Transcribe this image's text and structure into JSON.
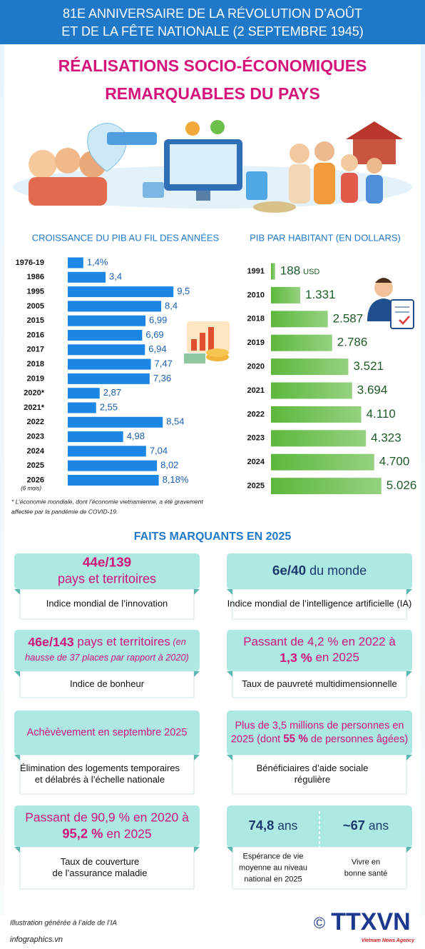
{
  "header": {
    "line1": "81E ANNIVERSAIRE DE LA RÉVOLUTION D’AOÛT",
    "line2": "ET DE LA FÊTE NATIONALE (2 SEPTEMBRE 1945)"
  },
  "title": {
    "line1": "RÉALISATIONS SOCIO-ÉCONOMIQUES",
    "line2": "REMARQUABLES DU PAYS"
  },
  "chart_data": [
    {
      "type": "bar",
      "title": "CROISSANCE DU PIB AU FIL DES ANNÉES",
      "categories": [
        "1976-19",
        "1986",
        "1995",
        "2005",
        "2015",
        "2016",
        "2017",
        "2018",
        "2019",
        "2020*",
        "2021*",
        "2022",
        "2023",
        "2024",
        "2025",
        "2026"
      ],
      "period_note": "(6 mois)",
      "values": [
        1.4,
        3.4,
        9.5,
        8.4,
        6.99,
        6.69,
        6.94,
        7.47,
        7.36,
        2.87,
        2.55,
        8.54,
        4.98,
        7.04,
        8.02,
        8.18
      ],
      "value_labels": [
        "1,4%",
        "3,4",
        "9,5",
        "8,4",
        "6,99",
        "6,69",
        "6,94",
        "7,47",
        "7,36",
        "2,87",
        "2,55",
        "8,54",
        "4,98",
        "7,04",
        "8,02",
        "8,18%"
      ],
      "color": "#1b86e3",
      "xlim": [
        0,
        10
      ],
      "note": [
        "* L’économie mondiale, dont l’économie vietnamienne, a été gravement",
        "affectée par la pandémie de COVID-19."
      ]
    },
    {
      "type": "bar",
      "title": "PIB PAR HABITANT (EN DOLLARS)",
      "categories": [
        "1991",
        "2010",
        "2018",
        "2019",
        "2020",
        "2021",
        "2022",
        "2023",
        "2024",
        "2025"
      ],
      "values": [
        188,
        1331,
        2587,
        2786,
        3521,
        3694,
        4110,
        4323,
        4700,
        5026
      ],
      "value_labels": [
        "188",
        "1.331",
        "2.587",
        "2.786",
        "3.521",
        "3.694",
        "4.110",
        "4.323",
        "4.700",
        "5.026"
      ],
      "unit": "USD",
      "color": "#5cb83c",
      "xlim": [
        0,
        5000
      ]
    }
  ],
  "highlights": {
    "title": "FAITS MARQUANTS EN 2025",
    "cards": [
      {
        "top_color": "#d0157a",
        "parts": [
          {
            "top": [
              [
                {
                  "text": "44e/139",
                  "style": "bold"
                }
              ],
              [
                {
                  "text": "pays et territoires"
                }
              ]
            ],
            "bottom": [
              "Indice mondial de l’innovation"
            ]
          }
        ]
      },
      {
        "top_color": "#1b3a6b",
        "parts": [
          {
            "top": [
              [
                {
                  "text": "6e/40",
                  "style": "bold"
                },
                {
                  "text": " du monde"
                }
              ]
            ],
            "bottom": [
              "Indice mondial de l’intelligence artificielle (IA)"
            ]
          }
        ]
      },
      {
        "top_color": "#d0157a",
        "parts": [
          {
            "top": [
              [
                {
                  "text": "46e/143",
                  "style": "bold"
                },
                {
                  "text": " pays et territoires"
                },
                {
                  "text": " (en",
                  "style": "italic"
                }
              ],
              [
                {
                  "text": "hausse de 37 places par rapport à 2020)",
                  "style": "italic"
                }
              ]
            ],
            "bottom": [
              "Indice de bonheur"
            ]
          }
        ]
      },
      {
        "top_color": "#d0157a",
        "parts": [
          {
            "top": [
              [
                {
                  "text": "Passant de 4,2 % en 2022 à"
                }
              ],
              [
                {
                  "text": "1,3 %",
                  "style": "bold"
                },
                {
                  "text": " en 2025"
                }
              ]
            ],
            "bottom": [
              "Taux de pauvreté multidimensionnelle"
            ]
          }
        ]
      },
      {
        "top_color": "#d0157a",
        "parts": [
          {
            "top": [
              [
                {
                  "text": "Achèvèvement en septembre 2025"
                }
              ]
            ],
            "bottom": [
              "Élimination des logements temporaires",
              "et délabrés à l’échelle nationale"
            ]
          }
        ]
      },
      {
        "top_color": "#d0157a",
        "parts": [
          {
            "top": [
              [
                {
                  "text": "Plus de 3,5 millions de personnes en"
                }
              ],
              [
                {
                  "text": "2025 (dont "
                },
                {
                  "text": "55 %",
                  "style": "bold"
                },
                {
                  "text": " de personnes âgées)"
                }
              ]
            ],
            "bottom": [
              "Bénéficiaires d’aide sociale",
              "régulière"
            ]
          }
        ]
      },
      {
        "top_color": "#d0157a",
        "parts": [
          {
            "top": [
              [
                {
                  "text": "Passant de 90,9 % en 2020 à"
                }
              ],
              [
                {
                  "text": "95,2 %",
                  "style": "bold"
                },
                {
                  "text": " en 2025"
                }
              ]
            ],
            "bottom": [
              "Taux de couverture",
              "de l’assurance maladie"
            ]
          }
        ]
      },
      {
        "top_color": "#1b3a6b",
        "parts": [
          {
            "top": [
              [
                {
                  "text": "74,8",
                  "style": "bold"
                },
                {
                  "text": " ans"
                }
              ]
            ],
            "bottom": [
              "Espérance de vie",
              "moyenne au niveau",
              "national en 2025"
            ]
          },
          {
            "top": [
              [
                {
                  "text": "~67",
                  "style": "bold"
                },
                {
                  "text": " ans"
                }
              ]
            ],
            "bottom": [
              "Vivre en",
              "bonne santé"
            ]
          }
        ]
      }
    ]
  },
  "footer": {
    "credit": "Illustration générée à l’aide de l’IA",
    "site": "infographics.vn",
    "copyright": "©",
    "logo": "TTXVN",
    "agency": "Vietnam News Agency"
  }
}
